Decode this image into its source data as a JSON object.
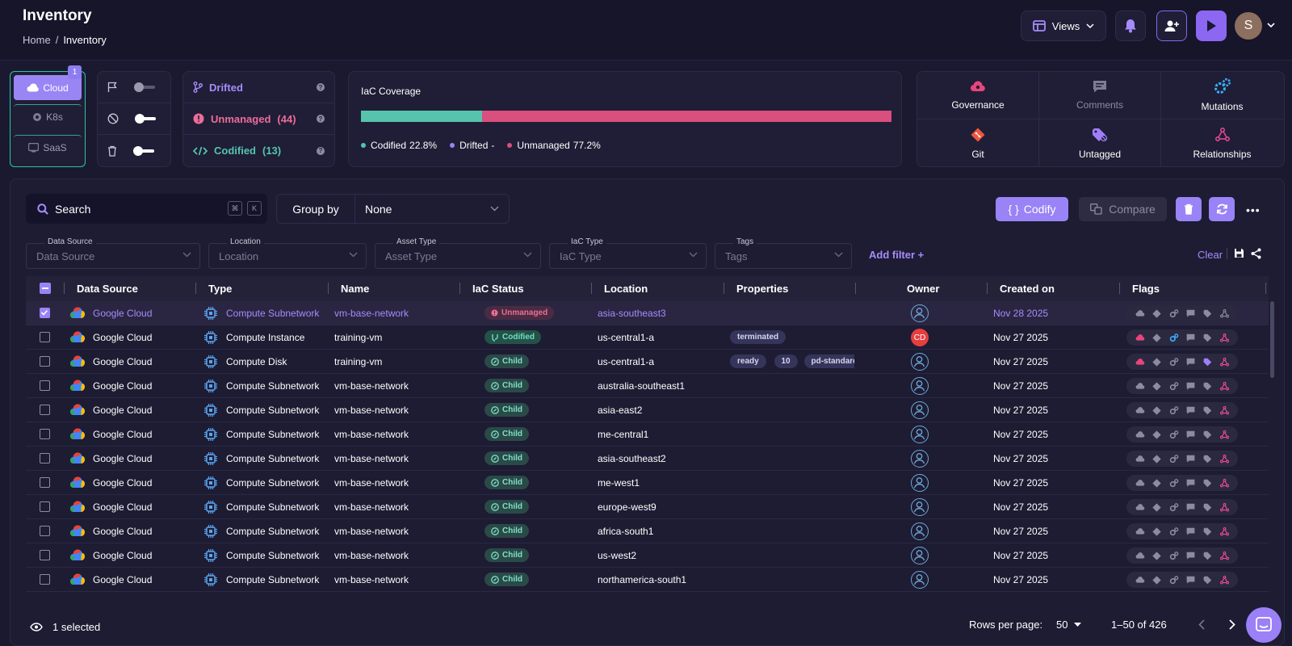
{
  "header": {
    "title": "Inventory",
    "breadcrumb": [
      "Home",
      "/",
      "Inventory"
    ],
    "views_label": "Views",
    "avatar_initial": "S"
  },
  "providers": {
    "items": [
      "Cloud",
      "K8s",
      "SaaS"
    ],
    "active": "Cloud",
    "badge": "1"
  },
  "status": {
    "drifted": "Drifted",
    "unmanaged": "Unmanaged",
    "unmanaged_count": "(44)",
    "codified": "Codified",
    "codified_count": "(13)",
    "help": "?"
  },
  "coverage": {
    "label": "IaC Coverage",
    "codified_pct": 22.8,
    "unmanaged_pct": 77.2,
    "legend": [
      {
        "label": "Codified",
        "value": "22.8%",
        "color": "#56c4ad"
      },
      {
        "label": "Drifted",
        "value": "-",
        "color": "#9a83f7"
      },
      {
        "label": "Unmanaged",
        "value": "77.2%",
        "color": "#d94f7e"
      }
    ]
  },
  "flag_cards": [
    "Governance",
    "Comments",
    "Mutations",
    "Git",
    "Untagged",
    "Relationships"
  ],
  "toolbar": {
    "search_placeholder": "Search",
    "kbd1": "⌘",
    "kbd2": "K",
    "group_by_label": "Group by",
    "group_by_value": "None",
    "codify_label": "Codify",
    "codify_brace": "{ }",
    "compare_label": "Compare"
  },
  "filters": [
    {
      "label": "Data Source",
      "placeholder": "Data Source"
    },
    {
      "label": "Location",
      "placeholder": "Location"
    },
    {
      "label": "Asset Type",
      "placeholder": "Asset Type"
    },
    {
      "label": "IaC Type",
      "placeholder": "IaC Type"
    },
    {
      "label": "Tags",
      "placeholder": "Tags"
    }
  ],
  "add_filter": "Add filter +",
  "clear": "Clear",
  "columns": [
    "Data Source",
    "Type",
    "Name",
    "IaC Status",
    "Location",
    "Properties",
    "Owner",
    "Created on",
    "Flags"
  ],
  "rows": [
    {
      "source": "Google Cloud",
      "type": "Compute Subnetwork",
      "name": "vm-base-network",
      "status": "Unmanaged",
      "location": "asia-southeast3",
      "props": [],
      "owner": "",
      "created": "Nov 28 2025",
      "selected": true
    },
    {
      "source": "Google Cloud",
      "type": "Compute Instance",
      "name": "training-vm",
      "status": "Codified",
      "location": "us-central1-a",
      "props": [
        "terminated"
      ],
      "owner": "CD",
      "created": "Nov 27 2025"
    },
    {
      "source": "Google Cloud",
      "type": "Compute Disk",
      "name": "training-vm",
      "status": "Child",
      "location": "us-central1-a",
      "props": [
        "ready",
        "10",
        "pd-standard"
      ],
      "owner": "",
      "created": "Nov 27 2025"
    },
    {
      "source": "Google Cloud",
      "type": "Compute Subnetwork",
      "name": "vm-base-network",
      "status": "Child",
      "location": "australia-southeast1",
      "props": [],
      "owner": "",
      "created": "Nov 27 2025"
    },
    {
      "source": "Google Cloud",
      "type": "Compute Subnetwork",
      "name": "vm-base-network",
      "status": "Child",
      "location": "asia-east2",
      "props": [],
      "owner": "",
      "created": "Nov 27 2025"
    },
    {
      "source": "Google Cloud",
      "type": "Compute Subnetwork",
      "name": "vm-base-network",
      "status": "Child",
      "location": "me-central1",
      "props": [],
      "owner": "",
      "created": "Nov 27 2025"
    },
    {
      "source": "Google Cloud",
      "type": "Compute Subnetwork",
      "name": "vm-base-network",
      "status": "Child",
      "location": "asia-southeast2",
      "props": [],
      "owner": "",
      "created": "Nov 27 2025"
    },
    {
      "source": "Google Cloud",
      "type": "Compute Subnetwork",
      "name": "vm-base-network",
      "status": "Child",
      "location": "me-west1",
      "props": [],
      "owner": "",
      "created": "Nov 27 2025"
    },
    {
      "source": "Google Cloud",
      "type": "Compute Subnetwork",
      "name": "vm-base-network",
      "status": "Child",
      "location": "europe-west9",
      "props": [],
      "owner": "",
      "created": "Nov 27 2025"
    },
    {
      "source": "Google Cloud",
      "type": "Compute Subnetwork",
      "name": "vm-base-network",
      "status": "Child",
      "location": "africa-south1",
      "props": [],
      "owner": "",
      "created": "Nov 27 2025"
    },
    {
      "source": "Google Cloud",
      "type": "Compute Subnetwork",
      "name": "vm-base-network",
      "status": "Child",
      "location": "us-west2",
      "props": [],
      "owner": "",
      "created": "Nov 27 2025"
    },
    {
      "source": "Google Cloud",
      "type": "Compute Subnetwork",
      "name": "vm-base-network",
      "status": "Child",
      "location": "northamerica-south1",
      "props": [],
      "owner": "",
      "created": "Nov 27 2025"
    }
  ],
  "footer": {
    "selected": "1 selected",
    "rows_per_page_label": "Rows per page:",
    "rows_per_page": "50",
    "range": "1–50 of 426"
  },
  "colors": {
    "accent": "#9a83f7",
    "codified": "#56c4ad",
    "unmanaged": "#d94f7e",
    "teal": "#2ec4a6"
  }
}
